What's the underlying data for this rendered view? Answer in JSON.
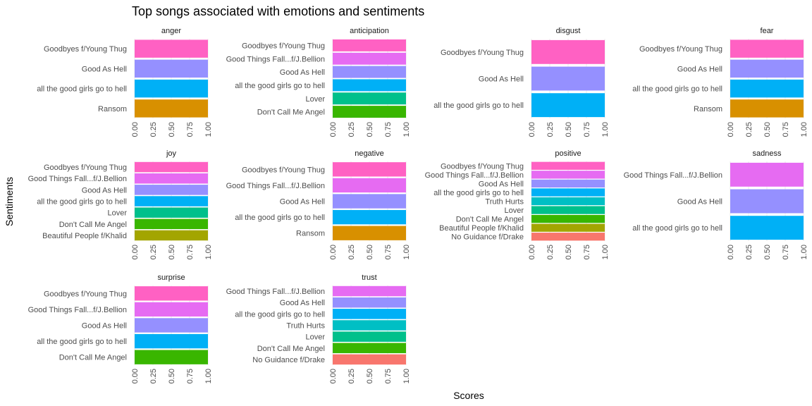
{
  "chart_data": {
    "type": "bar",
    "orientation": "horizontal",
    "title": "Top songs associated with emotions and sentiments",
    "xlabel": "Scores",
    "ylabel": "Sentiments",
    "xlim": [
      0,
      1
    ],
    "x_ticks": [
      "0.00",
      "0.25",
      "0.50",
      "0.75",
      "1.00"
    ],
    "grid": true,
    "legend": "none",
    "song_colors": {
      "Goodbyes f/Young Thug": "#ff61c3",
      "Good Things Fall...f/J.Bellion": "#e66bf2",
      "Good As Hell": "#9590ff",
      "all the good girls go to hell": "#00b0f6",
      "Truth Hurts": "#00bfc4",
      "Lover": "#00c08b",
      "Don't Call Me Angel": "#39b600",
      "Beautiful People f/Khalid": "#a3a500",
      "Ransom": "#d89000",
      "No Guidance f/Drake": "#f8766d"
    },
    "panels": [
      {
        "name": "anger",
        "categories": [
          "Goodbyes f/Young Thug",
          "Good As Hell",
          "all the good girls go to hell",
          "Ransom"
        ],
        "values": [
          1,
          1,
          1,
          1
        ]
      },
      {
        "name": "anticipation",
        "categories": [
          "Goodbyes f/Young Thug",
          "Good Things Fall...f/J.Bellion",
          "Good As Hell",
          "all the good girls go to hell",
          "Lover",
          "Don't Call Me Angel"
        ],
        "values": [
          1,
          1,
          1,
          1,
          1,
          1
        ]
      },
      {
        "name": "disgust",
        "categories": [
          "Goodbyes f/Young Thug",
          "Good As Hell",
          "all the good girls go to hell"
        ],
        "values": [
          1,
          1,
          1
        ]
      },
      {
        "name": "fear",
        "categories": [
          "Goodbyes f/Young Thug",
          "Good As Hell",
          "all the good girls go to hell",
          "Ransom"
        ],
        "values": [
          1,
          1,
          1,
          1
        ]
      },
      {
        "name": "joy",
        "categories": [
          "Goodbyes f/Young Thug",
          "Good Things Fall...f/J.Bellion",
          "Good As Hell",
          "all the good girls go to hell",
          "Lover",
          "Don't Call Me Angel",
          "Beautiful People f/Khalid"
        ],
        "values": [
          1,
          1,
          1,
          1,
          1,
          1,
          1
        ]
      },
      {
        "name": "negative",
        "categories": [
          "Goodbyes f/Young Thug",
          "Good Things Fall...f/J.Bellion",
          "Good As Hell",
          "all the good girls go to hell",
          "Ransom"
        ],
        "values": [
          1,
          1,
          1,
          1,
          1
        ]
      },
      {
        "name": "positive",
        "categories": [
          "Goodbyes f/Young Thug",
          "Good Things Fall...f/J.Bellion",
          "Good As Hell",
          "all the good girls go to hell",
          "Truth Hurts",
          "Lover",
          "Don't Call Me Angel",
          "Beautiful People f/Khalid",
          "No Guidance f/Drake"
        ],
        "values": [
          1,
          1,
          1,
          1,
          1,
          1,
          1,
          1,
          1
        ]
      },
      {
        "name": "sadness",
        "categories": [
          "Good Things Fall...f/J.Bellion",
          "Good As Hell",
          "all the good girls go to hell"
        ],
        "values": [
          1,
          1,
          1
        ]
      },
      {
        "name": "surprise",
        "categories": [
          "Goodbyes f/Young Thug",
          "Good Things Fall...f/J.Bellion",
          "Good As Hell",
          "all the good girls go to hell",
          "Don't Call Me Angel"
        ],
        "values": [
          1,
          1,
          1,
          1,
          1
        ]
      },
      {
        "name": "trust",
        "categories": [
          "Good Things Fall...f/J.Bellion",
          "Good As Hell",
          "all the good girls go to hell",
          "Truth Hurts",
          "Lover",
          "Don't Call Me Angel",
          "No Guidance f/Drake"
        ],
        "values": [
          1,
          1,
          1,
          1,
          1,
          1,
          1
        ]
      }
    ]
  }
}
